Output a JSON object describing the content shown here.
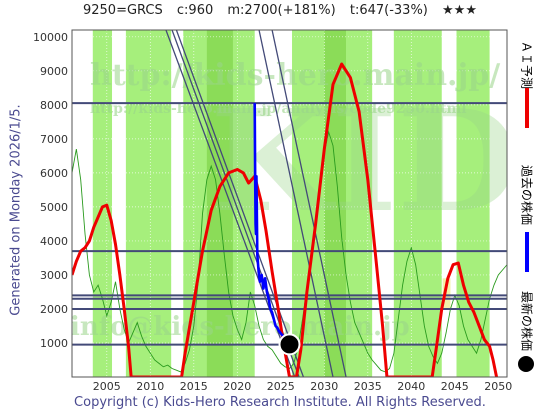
{
  "header": {
    "ticker": "9250=GRCS",
    "c": "c:960",
    "m": "m:2700(+181%)",
    "t": "t:647(-33%)",
    "stars": "★★★"
  },
  "generated_label": "Generated on Monday 2026/1/5.",
  "legend": {
    "ai_forecast": "ＡＩ予測",
    "past_price": "過去の株価",
    "latest_price": "最新の株価"
  },
  "copyright": "Copyright (c) Kids-Hero Research Institute. All Rights Reserved.",
  "watermarks": {
    "big": "KIDS",
    "url1": "http://kids-hero.main.jp/",
    "url2": "http://kids-hero.main.jp/analysis/code9250.html",
    "email": "info@kids-hero.main.jp"
  },
  "colors": {
    "ai_forecast": "#ee0000",
    "past_price": "#0000ff",
    "latest_price": "#000000",
    "band_light": "#a6ef7c",
    "band_dark": "#8bdc58",
    "hline": "#434a78"
  },
  "chart_data": {
    "type": "line",
    "xlim": [
      2001,
      2051
    ],
    "ylim": [
      0,
      10200
    ],
    "x_ticks": [
      2005,
      2010,
      2015,
      2020,
      2025,
      2030,
      2035,
      2040,
      2045,
      2050
    ],
    "y_ticks": [
      1000,
      2000,
      3000,
      4000,
      5000,
      6000,
      7000,
      8000,
      9000,
      10000
    ],
    "horizontal_levels": [
      8050,
      3700,
      2400,
      2300,
      2000,
      950
    ],
    "latest_point": {
      "x": 2026.0,
      "y": 960
    },
    "series": [
      {
        "key": "ai_forecast",
        "points": [
          [
            2001.0,
            3000
          ],
          [
            2001.5,
            3400
          ],
          [
            2002.0,
            3700
          ],
          [
            2002.5,
            3800
          ],
          [
            2003.0,
            4000
          ],
          [
            2003.5,
            4400
          ],
          [
            2004.0,
            4700
          ],
          [
            2004.5,
            5000
          ],
          [
            2005.0,
            5050
          ],
          [
            2005.5,
            4600
          ],
          [
            2006.0,
            3900
          ],
          [
            2006.5,
            3000
          ],
          [
            2007.0,
            2000
          ],
          [
            2007.5,
            900
          ],
          [
            2007.8,
            0
          ],
          [
            2013.6,
            0
          ],
          [
            2014.0,
            700
          ],
          [
            2015.0,
            2200
          ],
          [
            2016.0,
            3700
          ],
          [
            2017.0,
            4900
          ],
          [
            2018.0,
            5600
          ],
          [
            2019.0,
            6000
          ],
          [
            2020.0,
            6100
          ],
          [
            2020.7,
            6000
          ],
          [
            2021.3,
            5700
          ],
          [
            2022.0,
            5900
          ],
          [
            2022.7,
            5200
          ],
          [
            2023.3,
            4300
          ],
          [
            2024.0,
            3100
          ],
          [
            2024.7,
            2000
          ],
          [
            2025.3,
            1000
          ],
          [
            2026.0,
            0
          ],
          [
            2026.8,
            0
          ],
          [
            2027.3,
            800
          ],
          [
            2028.0,
            2500
          ],
          [
            2029.0,
            4500
          ],
          [
            2030.0,
            6700
          ],
          [
            2031.0,
            8600
          ],
          [
            2032.0,
            9200
          ],
          [
            2033.0,
            8800
          ],
          [
            2034.0,
            7800
          ],
          [
            2035.0,
            5800
          ],
          [
            2036.0,
            3300
          ],
          [
            2036.7,
            1500
          ],
          [
            2037.2,
            0
          ],
          [
            2042.4,
            0
          ],
          [
            2042.9,
            900
          ],
          [
            2043.5,
            2000
          ],
          [
            2044.2,
            2900
          ],
          [
            2044.8,
            3300
          ],
          [
            2045.4,
            3350
          ],
          [
            2046.0,
            2700
          ],
          [
            2046.6,
            2200
          ],
          [
            2047.2,
            1900
          ],
          [
            2047.8,
            1500
          ],
          [
            2048.4,
            1100
          ],
          [
            2049.0,
            900
          ],
          [
            2049.4,
            500
          ],
          [
            2049.8,
            0
          ]
        ]
      },
      {
        "key": "past_price",
        "points": [
          [
            2022.0,
            8050
          ],
          [
            2022.05,
            6000
          ],
          [
            2022.1,
            4500
          ],
          [
            2022.15,
            4200
          ],
          [
            2022.2,
            5900
          ],
          [
            2022.3,
            3600
          ],
          [
            2022.45,
            3100
          ],
          [
            2022.6,
            2800
          ],
          [
            2022.8,
            3000
          ],
          [
            2023.0,
            2600
          ],
          [
            2023.2,
            2900
          ],
          [
            2023.4,
            2500
          ],
          [
            2023.6,
            2300
          ],
          [
            2023.8,
            2000
          ],
          [
            2024.0,
            1900
          ],
          [
            2024.2,
            1700
          ],
          [
            2024.4,
            1500
          ],
          [
            2024.6,
            1450
          ],
          [
            2024.8,
            1350
          ],
          [
            2025.0,
            1280
          ],
          [
            2025.2,
            1220
          ],
          [
            2025.5,
            1100
          ],
          [
            2025.8,
            1000
          ],
          [
            2026.0,
            960
          ]
        ]
      }
    ]
  }
}
